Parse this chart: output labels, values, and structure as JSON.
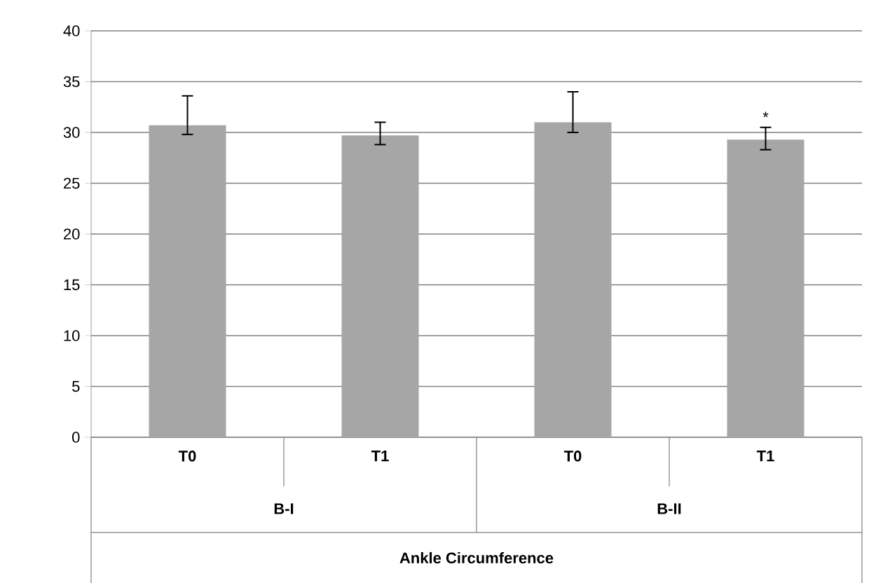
{
  "chart_data": {
    "type": "bar",
    "categories": [
      "T0",
      "T1",
      "T0",
      "T1"
    ],
    "values": [
      30.7,
      29.7,
      31.0,
      29.3
    ],
    "errors": [
      [
        29.8,
        33.6
      ],
      [
        28.8,
        31.0
      ],
      [
        30.0,
        34.0
      ],
      [
        28.3,
        30.5
      ]
    ],
    "value_labels": [
      null,
      null,
      null,
      "*"
    ],
    "color": "#a6a6a6",
    "annotations": [
      "B-I",
      "B-II",
      "Ankle Circumference"
    ],
    "ylim": [
      0,
      40
    ],
    "yticks": [
      0,
      5,
      10,
      15,
      20,
      25,
      30,
      35,
      40
    ],
    "grid": "y"
  }
}
